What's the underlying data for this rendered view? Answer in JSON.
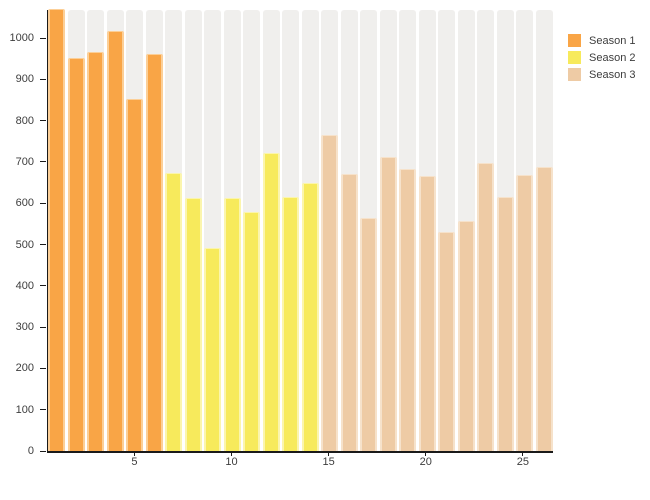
{
  "chart_data": {
    "type": "bar",
    "title": "",
    "xlabel": "",
    "ylabel": "",
    "ylim": [
      0,
      1068
    ],
    "yticks": [
      0,
      100,
      200,
      300,
      400,
      500,
      600,
      700,
      800,
      900,
      1000
    ],
    "xticks": [
      5,
      10,
      15,
      20,
      25
    ],
    "total_bars": 26,
    "grid": false,
    "background_columns": true,
    "legend_position": "top-right",
    "series": [
      {
        "name": "Season 1",
        "color": "#f9a546",
        "edge_color": "#fccf97",
        "x": [
          1,
          2,
          3,
          4,
          5,
          6
        ],
        "values": [
          1070,
          953,
          967,
          1018,
          853,
          962
        ]
      },
      {
        "name": "Season 2",
        "color": "#f7ea5c",
        "edge_color": "#fbf5ad",
        "x": [
          7,
          8,
          9,
          10,
          11,
          12,
          13,
          14
        ],
        "values": [
          674,
          612,
          492,
          613,
          578,
          722,
          616,
          650
        ]
      },
      {
        "name": "Season 3",
        "color": "#eecba5",
        "edge_color": "#f6e2cb",
        "x": [
          15,
          16,
          17,
          18,
          19,
          20,
          21,
          22,
          23,
          24,
          25,
          26
        ],
        "values": [
          766,
          670,
          564,
          711,
          682,
          666,
          530,
          556,
          697,
          614,
          668,
          689
        ]
      }
    ],
    "colors": {
      "axis": "#1a1a1a",
      "tick_text": "#3d3d3d",
      "background_column": "#f0efed",
      "plot_background": "#ffffff"
    }
  }
}
